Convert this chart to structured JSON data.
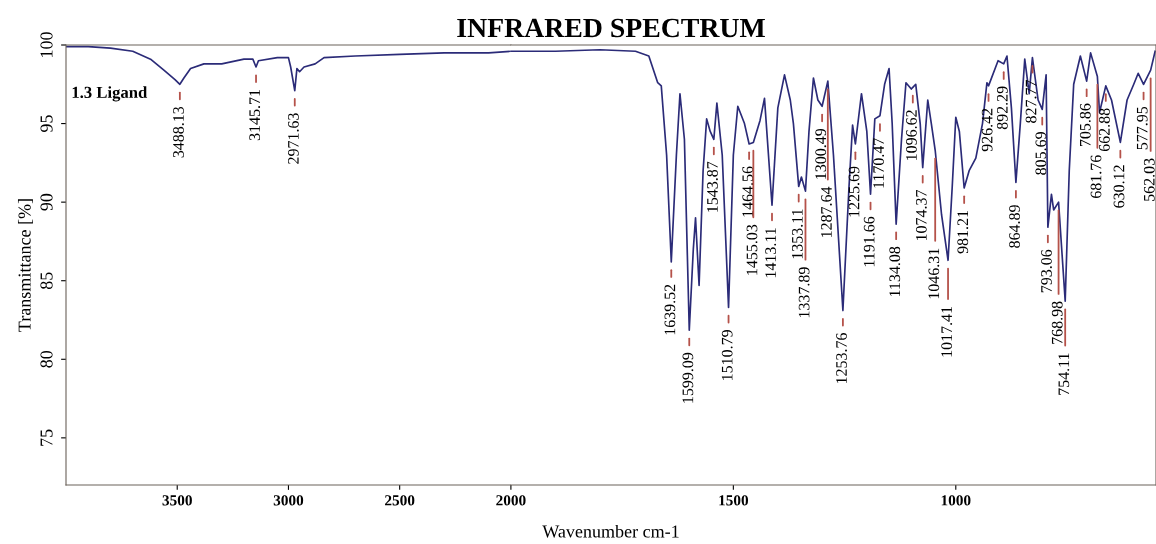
{
  "chart_data": [
    {
      "type": "line",
      "xlabel": "Wavenumber cm-1",
      "ylabel": "Transmittance [%]",
      "xlim": [
        4000,
        2000
      ],
      "xticks": [
        3500,
        3000,
        2500,
        2000
      ],
      "ylim": [
        72,
        100
      ],
      "yticks": [
        75,
        80,
        85,
        90,
        95,
        100
      ],
      "grid": false,
      "marker": "none",
      "line_style": "solid",
      "series": [
        {
          "color": "#2b2b78",
          "x": [
            4000,
            3900,
            3800,
            3700,
            3620,
            3560,
            3510,
            3488.13,
            3470,
            3440,
            3380,
            3300,
            3200,
            3160,
            3145.71,
            3135,
            3050,
            3000,
            2990,
            2971.63,
            2962,
            2950,
            2930,
            2880,
            2840,
            2700,
            2500,
            2300,
            2100,
            2000
          ],
          "values": [
            99.9,
            99.9,
            99.8,
            99.6,
            99.1,
            98.4,
            97.8,
            97.5,
            97.9,
            98.5,
            98.8,
            98.8,
            99.1,
            99.1,
            98.6,
            99.0,
            99.2,
            99.2,
            98.6,
            97.1,
            98.5,
            98.3,
            98.6,
            98.8,
            99.2,
            99.3,
            99.4,
            99.5,
            99.5,
            99.6
          ]
        }
      ],
      "annotations": [
        "1.3 Ligand",
        {
          "text": "3488.13",
          "x": 3488.13,
          "y": 97.5
        },
        {
          "text": "3145.71",
          "x": 3145.71,
          "y": 98.6
        },
        {
          "text": "2971.63",
          "x": 2971.63,
          "y": 97.1
        }
      ]
    },
    {
      "type": "line",
      "title": "INFRARED SPECTRUM",
      "xlim": [
        2000,
        550
      ],
      "xticks": [
        1500,
        1000
      ],
      "ylim": [
        72,
        100
      ],
      "tick_labels": "x",
      "grid": false,
      "marker": "none",
      "line_style": "solid",
      "series": [
        {
          "color": "#2b2b78",
          "x": [
            2000,
            1900,
            1800,
            1720,
            1690,
            1670,
            1662,
            1650,
            1639.52,
            1628,
            1620,
            1610,
            1599.09,
            1590,
            1585,
            1577,
            1568,
            1560,
            1552,
            1543.87,
            1537,
            1525,
            1510.79,
            1500,
            1490,
            1475,
            1464.56,
            1455.03,
            1440,
            1430,
            1413.11,
            1400,
            1385,
            1372,
            1365,
            1353.11,
            1347,
            1337.89,
            1330,
            1320,
            1310,
            1300.49,
            1287.64,
            1275,
            1253.76,
            1240,
            1232,
            1225.69,
            1212,
            1200,
            1191.66,
            1182,
            1170.47,
            1160,
            1150,
            1143,
            1134.08,
            1122,
            1112,
            1100,
            1096.62,
            1090,
            1080,
            1074.37,
            1063,
            1055,
            1046.31,
            1032,
            1017.41,
            1008,
            1000,
            992,
            981.21,
            970,
            955,
            940,
            930,
            926.42,
            905,
            892.29,
            885,
            875,
            864.89,
            855,
            845,
            835,
            827.77,
            815,
            805.69,
            797,
            793.06,
            785,
            780,
            768.98,
            754.11,
            745,
            735,
            720,
            705.86,
            697,
            681.76,
            677,
            662.88,
            650,
            630.12,
            615,
            600,
            590,
            577.95,
            562.03,
            552
          ],
          "values": [
            99.6,
            99.6,
            99.7,
            99.6,
            99.3,
            97.6,
            97.4,
            93,
            86.2,
            93,
            96.9,
            94,
            81.85,
            87,
            89.0,
            84.7,
            92,
            95.3,
            94.5,
            94.0,
            96.3,
            93,
            83.3,
            93,
            96.1,
            95,
            93.7,
            93.8,
            95.2,
            96.6,
            89.8,
            96,
            98.1,
            96.5,
            95.0,
            91.0,
            91.6,
            90.7,
            94.5,
            97.9,
            96.5,
            96.1,
            97.7,
            93,
            83.1,
            91,
            94.9,
            93.7,
            96.9,
            94.5,
            90.5,
            95.3,
            95.5,
            97.5,
            98.5,
            95,
            88.6,
            94,
            97.6,
            97.2,
            97.3,
            97.5,
            95,
            92.2,
            96.5,
            95,
            93.3,
            89.2,
            86.3,
            91,
            95.4,
            94.5,
            90.9,
            92,
            92.8,
            95,
            97.6,
            97.4,
            99.0,
            98.8,
            99.3,
            96,
            91.25,
            95,
            99.1,
            96.9,
            99.2,
            96.5,
            95.9,
            98.1,
            88.4,
            90.5,
            89.5,
            90.0,
            83.7,
            92,
            97.5,
            99.3,
            97.7,
            99.5,
            98.0,
            95.7,
            97.4,
            96.5,
            93.8,
            96.5,
            97.5,
            98.2,
            97.5,
            98.4,
            99.6
          ]
        }
      ],
      "annotations": [
        {
          "text": "1639.52",
          "x": 1639.52,
          "y": 86.2
        },
        {
          "text": "1599.09",
          "x": 1599.09,
          "y": 81.85
        },
        {
          "text": "1543.87",
          "x": 1543.87,
          "y": 94.0
        },
        {
          "text": "1510.79",
          "x": 1510.79,
          "y": 83.3
        },
        {
          "text": "1464.56",
          "x": 1464.56,
          "y": 93.7
        },
        {
          "text": "1455.03",
          "x": 1455.03,
          "y": 93.8
        },
        {
          "text": "1413.11",
          "x": 1413.11,
          "y": 89.8
        },
        {
          "text": "1353.11",
          "x": 1353.11,
          "y": 91.0
        },
        {
          "text": "1337.89",
          "x": 1337.89,
          "y": 90.7
        },
        {
          "text": "1300.49",
          "x": 1300.49,
          "y": 96.1
        },
        {
          "text": "1287.64",
          "x": 1287.64,
          "y": 97.7
        },
        {
          "text": "1253.76",
          "x": 1253.76,
          "y": 83.1
        },
        {
          "text": "1225.69",
          "x": 1225.69,
          "y": 93.7
        },
        {
          "text": "1191.66",
          "x": 1191.66,
          "y": 90.5
        },
        {
          "text": "1170.47",
          "x": 1170.47,
          "y": 95.5
        },
        {
          "text": "1134.08",
          "x": 1134.08,
          "y": 88.6
        },
        {
          "text": "1096.62",
          "x": 1096.62,
          "y": 97.3
        },
        {
          "text": "1074.37",
          "x": 1074.37,
          "y": 92.2
        },
        {
          "text": "1046.31",
          "x": 1046.31,
          "y": 93.3
        },
        {
          "text": "1017.41",
          "x": 1017.41,
          "y": 86.3
        },
        {
          "text": "981.21",
          "x": 981.21,
          "y": 90.9
        },
        {
          "text": "926.42",
          "x": 926.42,
          "y": 97.4
        },
        {
          "text": "892.29",
          "x": 892.29,
          "y": 98.8
        },
        {
          "text": "864.89",
          "x": 864.89,
          "y": 91.25
        },
        {
          "text": "827.77",
          "x": 827.77,
          "y": 99.2
        },
        {
          "text": "805.69",
          "x": 805.69,
          "y": 95.9
        },
        {
          "text": "793.06",
          "x": 793.06,
          "y": 88.4
        },
        {
          "text": "768.98",
          "x": 768.98,
          "y": 90.0
        },
        {
          "text": "754.11",
          "x": 754.11,
          "y": 83.7
        },
        {
          "text": "705.86",
          "x": 705.86,
          "y": 97.7
        },
        {
          "text": "681.76",
          "x": 681.76,
          "y": 98.0
        },
        {
          "text": "662.88",
          "x": 662.88,
          "y": 97.4
        },
        {
          "text": "630.12",
          "x": 630.12,
          "y": 93.8
        },
        {
          "text": "577.95",
          "x": 577.95,
          "y": 97.5
        },
        {
          "text": "562.03",
          "x": 562.03,
          "y": 98.4
        }
      ]
    }
  ]
}
